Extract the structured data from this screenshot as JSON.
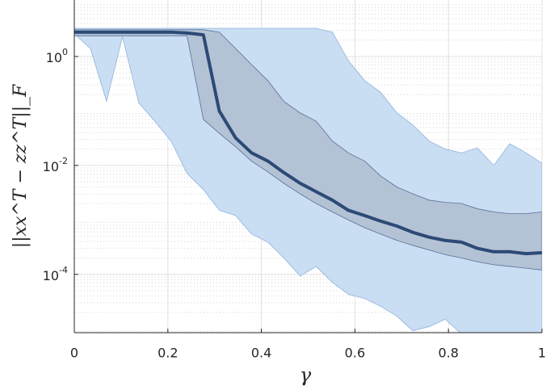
{
  "chart_data": {
    "type": "band-line",
    "x_label": "γ",
    "y_label": "||xx^T − zz^T||_F",
    "x": [
      0,
      0.0345,
      0.069,
      0.103,
      0.138,
      0.172,
      0.207,
      0.241,
      0.276,
      0.31,
      0.345,
      0.379,
      0.414,
      0.448,
      0.483,
      0.517,
      0.552,
      0.586,
      0.621,
      0.655,
      0.69,
      0.724,
      0.759,
      0.793,
      0.828,
      0.862,
      0.897,
      0.931,
      0.966,
      1
    ],
    "bands": [
      {
        "color": "#c9ddf3",
        "edge": "#8fb4dc",
        "lower": [
          2.6,
          1.4,
          0.15,
          2.3,
          0.14,
          0.065,
          0.028,
          0.0071,
          0.0036,
          0.0015,
          0.0012,
          0.00055,
          0.00039,
          0.0002,
          9.3e-05,
          0.00014,
          7.1e-05,
          4.3e-05,
          3.6e-05,
          2.6e-05,
          1.7e-05,
          9.2e-06,
          1.1e-05,
          1.5e-05,
          8e-06,
          8e-06,
          8e-06,
          8e-06,
          8e-06,
          8e-06
        ],
        "upper": [
          3.3,
          3.3,
          3.3,
          3.3,
          3.3,
          3.3,
          3.3,
          3.3,
          3.3,
          3.3,
          3.3,
          3.3,
          3.3,
          3.3,
          3.3,
          3.3,
          2.8,
          0.84,
          0.36,
          0.22,
          0.092,
          0.055,
          0.028,
          0.02,
          0.017,
          0.021,
          0.01,
          0.025,
          0.017,
          0.011
        ]
      },
      {
        "color": "#b4c2d5",
        "edge": "#56709a",
        "lower": [
          2.4,
          2.4,
          2.4,
          2.4,
          2.4,
          2.4,
          2.4,
          2.4,
          0.07,
          0.039,
          0.022,
          0.012,
          0.0076,
          0.0047,
          0.003,
          0.002,
          0.0014,
          0.001,
          0.00072,
          0.00055,
          0.00042,
          0.00034,
          0.00028,
          0.00023,
          0.0002,
          0.00017,
          0.00015,
          0.00014,
          0.00013,
          0.00012
        ],
        "upper": [
          3.1,
          3.1,
          3.1,
          3.1,
          3.1,
          3.1,
          3.1,
          3.1,
          3.1,
          2.8,
          1.4,
          0.71,
          0.36,
          0.15,
          0.092,
          0.065,
          0.028,
          0.017,
          0.012,
          0.0064,
          0.004,
          0.003,
          0.0023,
          0.0021,
          0.002,
          0.0016,
          0.0014,
          0.0013,
          0.0013,
          0.0014
        ]
      }
    ],
    "series": [
      {
        "color": "#2c4a76",
        "values": [
          2.8,
          2.8,
          2.8,
          2.8,
          2.8,
          2.8,
          2.8,
          2.7,
          2.5,
          0.1,
          0.032,
          0.017,
          0.012,
          0.0074,
          0.0047,
          0.0033,
          0.0023,
          0.0015,
          0.0012,
          0.00095,
          0.00077,
          0.00059,
          0.00048,
          0.00042,
          0.00039,
          0.0003,
          0.00026,
          0.00026,
          0.00024,
          0.00025
        ]
      }
    ],
    "xlim": [
      0,
      1
    ],
    "xticks": [
      0,
      0.2,
      0.4,
      0.6,
      0.8,
      1
    ],
    "ylim": [
      8.5e-06,
      10.9
    ],
    "ylog": true,
    "yticks": [
      {
        "value": 0.0001,
        "label": "10^-4"
      },
      {
        "value": 0.01,
        "label": "10^-2"
      },
      {
        "value": 1,
        "label": "10^0"
      }
    ],
    "grid": true
  }
}
